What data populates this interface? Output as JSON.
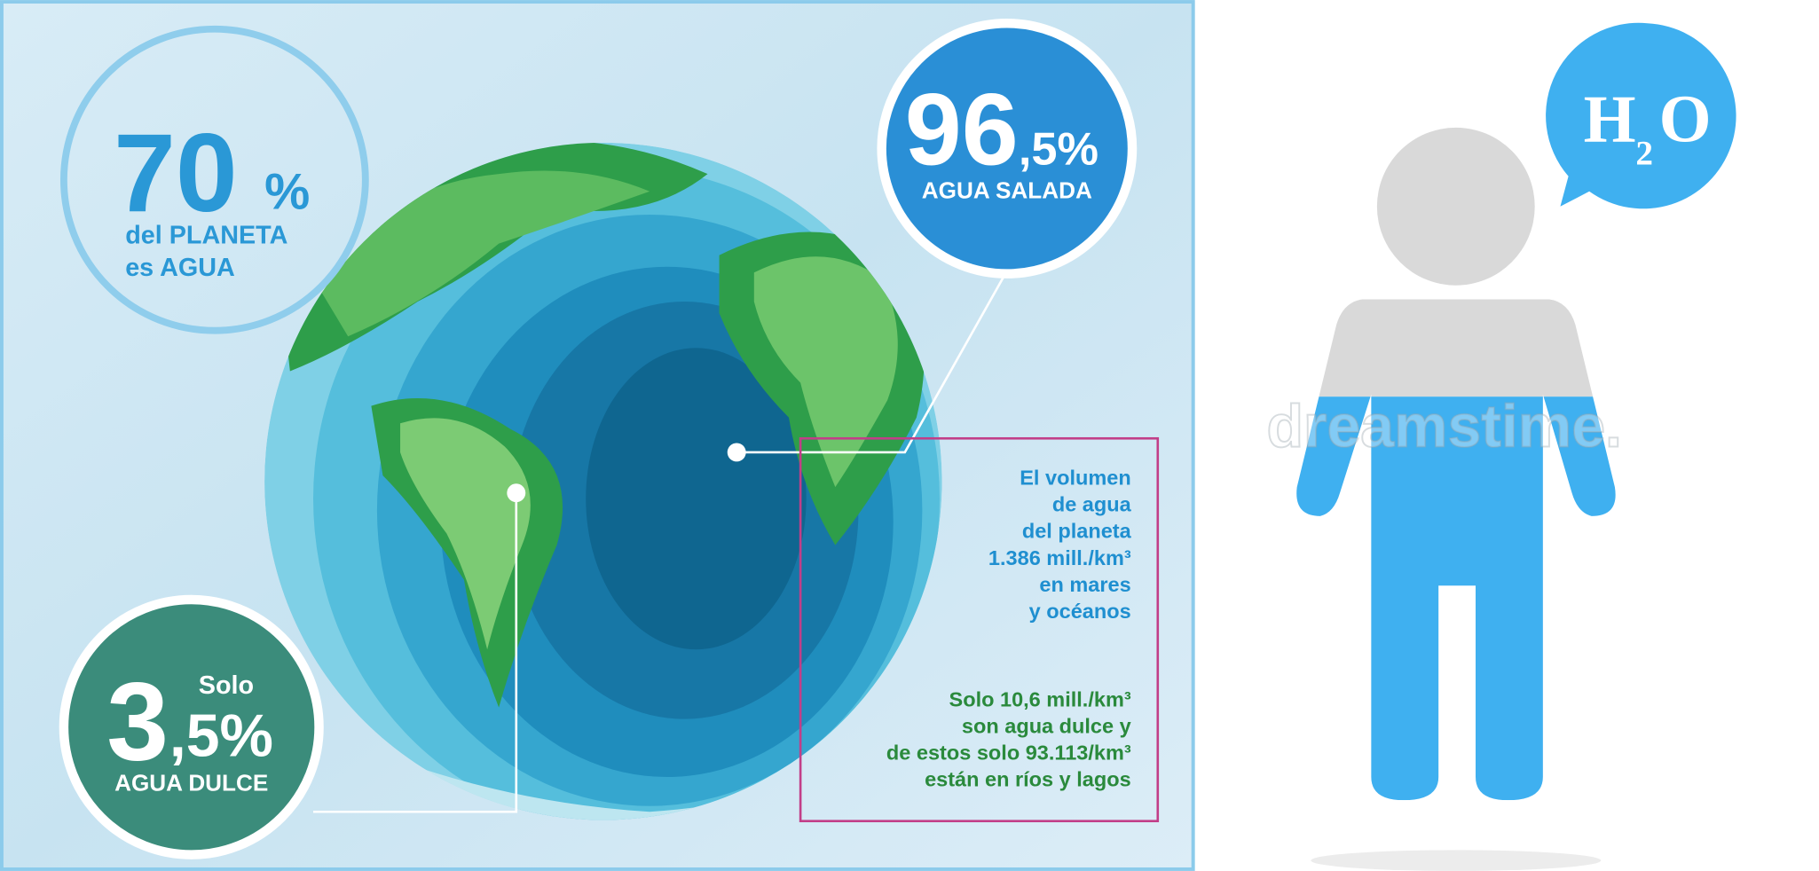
{
  "left_panel": {
    "stat_70": {
      "number": "70",
      "unit": "%",
      "line1": "del PLANETA",
      "line2": "es AGUA"
    },
    "stat_96": {
      "number": "96",
      "decimal": ",5%",
      "label": "AGUA SALADA"
    },
    "stat_3": {
      "prefix": "Solo",
      "number": "3",
      "decimal": ",5%",
      "label": "AGUA DULCE"
    },
    "info_box": {
      "volume_lines": [
        "El volumen",
        "de agua",
        "del planeta",
        "1.386 mill./km³",
        "en mares",
        "y océanos"
      ],
      "fresh_lines": [
        "Solo 10,6 mill./km³",
        "son agua dulce y",
        "de estos solo 93.113/km³",
        "están en ríos y lagos"
      ]
    }
  },
  "right_panel": {
    "watermark": "dreamstime.",
    "h2o": {
      "h": "H",
      "sub": "2",
      "o": "O"
    }
  }
}
